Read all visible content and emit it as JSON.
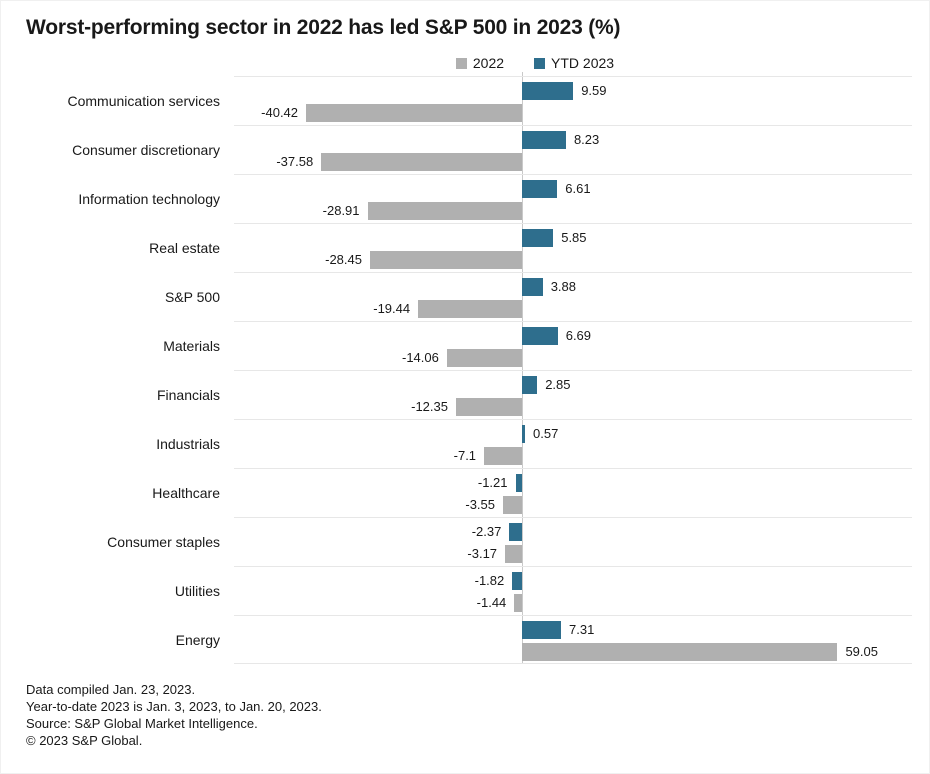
{
  "title": "Worst-performing sector in 2022 has led S&P 500 in 2023 (%)",
  "colors": {
    "bar_2022": "#b0b0b0",
    "bar_ytd_2023": "#2e6e8d",
    "gridline": "#e7e7e7",
    "zero_line": "#c9c9c9",
    "text": "#191919",
    "background": "#ffffff"
  },
  "legend": {
    "items": [
      {
        "label": "2022",
        "color": "#b0b0b0"
      },
      {
        "label": "YTD 2023",
        "color": "#2e6e8d"
      }
    ]
  },
  "chart_data": {
    "type": "bar",
    "orientation": "horizontal",
    "title": "Worst-performing sector in 2022 has led S&P 500 in 2023 (%)",
    "xlabel": "",
    "ylabel": "",
    "xlim": [
      -53.9,
      73.0
    ],
    "grid": "horizontal-row-separators",
    "legend_position": "top",
    "categories": [
      "Communication services",
      "Consumer discretionary",
      "Information technology",
      "Real estate",
      "S&P 500",
      "Materials",
      "Financials",
      "Industrials",
      "Healthcare",
      "Consumer staples",
      "Utilities",
      "Energy"
    ],
    "series": [
      {
        "name": "YTD 2023",
        "color": "#2e6e8d",
        "values": [
          9.59,
          8.23,
          6.61,
          5.85,
          3.88,
          6.69,
          2.85,
          0.57,
          -1.21,
          -2.37,
          -1.82,
          7.31
        ],
        "labels": [
          "9.59",
          "8.23",
          "6.61",
          "5.85",
          "3.88",
          "6.69",
          "2.85",
          "0.57",
          "-1.21",
          "-2.37",
          "-1.82",
          "7.31"
        ]
      },
      {
        "name": "2022",
        "color": "#b0b0b0",
        "values": [
          -40.42,
          -37.58,
          -28.91,
          -28.45,
          -19.44,
          -14.06,
          -12.35,
          -7.1,
          -3.55,
          -3.17,
          -1.44,
          59.05
        ],
        "labels": [
          "-40.42",
          "-37.58",
          "-28.91",
          "-28.45",
          "-19.44",
          "-14.06",
          "-12.35",
          "-7.1",
          "-3.55",
          "-3.17",
          "-1.44",
          "59.05"
        ]
      }
    ]
  },
  "footnotes": [
    "Data compiled Jan. 23, 2023.",
    "Year-to-date 2023 is Jan. 3, 2023, to Jan. 20, 2023.",
    "Source: S&P Global Market Intelligence.",
    "© 2023 S&P Global."
  ]
}
